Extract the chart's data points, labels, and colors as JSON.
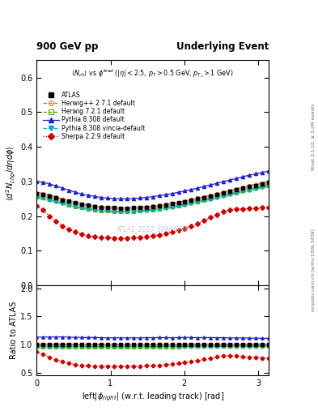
{
  "title_left": "900 GeV pp",
  "title_right": "Underlying Event",
  "subtitle": "<N_{ch}> vs \\phi^{lead} (|\\eta| < 2.5, p_T > 0.5 GeV, p_{T_1} > 1 GeV)",
  "ylabel_main": "\\langle d^2 N_{chg}/d\\eta d\\phi \\rangle",
  "ylabel_ratio": "Ratio to ATLAS",
  "xlabel": "left|\\phi_{right}| (w.r.t. leading track) [rad]",
  "watermark": "ATLAS_2010_S8894728",
  "right_label_top": "Rivet 3.1.10, \\geq 3.2M events",
  "right_label_bot": "mcplots.cern.ch [arXiv:1306.3436]",
  "ylim_main": [
    0.0,
    0.65
  ],
  "ylim_ratio": [
    0.45,
    2.05
  ],
  "yticks_main": [
    0.0,
    0.1,
    0.2,
    0.3,
    0.4,
    0.5,
    0.6
  ],
  "yticks_ratio": [
    0.5,
    1.0,
    1.5,
    2.0
  ],
  "xlim": [
    0.0,
    3.14159
  ],
  "xticks": [
    0,
    1,
    2,
    3
  ],
  "phi": [
    0.0,
    0.08727,
    0.17453,
    0.2618,
    0.34907,
    0.43633,
    0.5236,
    0.61087,
    0.69813,
    0.7854,
    0.87266,
    0.95993,
    1.0472,
    1.13446,
    1.22173,
    1.309,
    1.39626,
    1.48353,
    1.5708,
    1.65806,
    1.74533,
    1.8326,
    1.91986,
    2.00713,
    2.0944,
    2.18166,
    2.26893,
    2.35619,
    2.44346,
    2.53073,
    2.61799,
    2.70526,
    2.79253,
    2.87979,
    2.96706,
    3.05433,
    3.14159
  ],
  "atlas_y": [
    0.265,
    0.263,
    0.258,
    0.253,
    0.247,
    0.243,
    0.238,
    0.234,
    0.231,
    0.228,
    0.226,
    0.225,
    0.224,
    0.223,
    0.223,
    0.224,
    0.225,
    0.226,
    0.228,
    0.23,
    0.233,
    0.236,
    0.239,
    0.242,
    0.246,
    0.25,
    0.254,
    0.258,
    0.263,
    0.267,
    0.272,
    0.276,
    0.281,
    0.285,
    0.289,
    0.293,
    0.297
  ],
  "atlas_yerr": [
    0.005,
    0.005,
    0.005,
    0.004,
    0.004,
    0.004,
    0.004,
    0.004,
    0.003,
    0.003,
    0.003,
    0.003,
    0.003,
    0.003,
    0.003,
    0.003,
    0.003,
    0.003,
    0.003,
    0.003,
    0.003,
    0.003,
    0.003,
    0.004,
    0.004,
    0.004,
    0.004,
    0.004,
    0.004,
    0.004,
    0.005,
    0.005,
    0.005,
    0.005,
    0.005,
    0.005,
    0.005
  ],
  "herwig_pp_y": [
    0.268,
    0.265,
    0.26,
    0.255,
    0.249,
    0.244,
    0.239,
    0.235,
    0.232,
    0.229,
    0.227,
    0.225,
    0.224,
    0.223,
    0.223,
    0.224,
    0.225,
    0.227,
    0.229,
    0.231,
    0.234,
    0.237,
    0.24,
    0.244,
    0.248,
    0.252,
    0.256,
    0.26,
    0.265,
    0.269,
    0.274,
    0.278,
    0.283,
    0.287,
    0.291,
    0.295,
    0.299
  ],
  "herwig7_y": [
    0.255,
    0.252,
    0.248,
    0.243,
    0.238,
    0.233,
    0.228,
    0.224,
    0.221,
    0.218,
    0.216,
    0.215,
    0.214,
    0.213,
    0.213,
    0.214,
    0.215,
    0.217,
    0.219,
    0.221,
    0.224,
    0.227,
    0.23,
    0.234,
    0.238,
    0.242,
    0.246,
    0.25,
    0.255,
    0.259,
    0.264,
    0.268,
    0.273,
    0.277,
    0.281,
    0.285,
    0.289
  ],
  "pythia8_y": [
    0.3,
    0.298,
    0.293,
    0.287,
    0.281,
    0.275,
    0.269,
    0.264,
    0.26,
    0.257,
    0.254,
    0.252,
    0.251,
    0.25,
    0.25,
    0.251,
    0.252,
    0.254,
    0.256,
    0.259,
    0.262,
    0.265,
    0.269,
    0.273,
    0.277,
    0.281,
    0.286,
    0.29,
    0.295,
    0.3,
    0.304,
    0.309,
    0.314,
    0.318,
    0.322,
    0.326,
    0.33
  ],
  "vincia_y": [
    0.255,
    0.252,
    0.247,
    0.242,
    0.237,
    0.232,
    0.228,
    0.224,
    0.221,
    0.218,
    0.216,
    0.215,
    0.214,
    0.213,
    0.213,
    0.214,
    0.215,
    0.216,
    0.218,
    0.22,
    0.223,
    0.226,
    0.229,
    0.233,
    0.237,
    0.241,
    0.245,
    0.249,
    0.253,
    0.258,
    0.262,
    0.266,
    0.271,
    0.275,
    0.279,
    0.283,
    0.287
  ],
  "sherpa_y": [
    0.23,
    0.218,
    0.2,
    0.185,
    0.172,
    0.162,
    0.154,
    0.148,
    0.144,
    0.141,
    0.139,
    0.138,
    0.137,
    0.137,
    0.137,
    0.138,
    0.139,
    0.141,
    0.143,
    0.146,
    0.15,
    0.154,
    0.159,
    0.165,
    0.172,
    0.179,
    0.187,
    0.196,
    0.205,
    0.214,
    0.218,
    0.22,
    0.221,
    0.222,
    0.223,
    0.224,
    0.225
  ],
  "atlas_color": "black",
  "herwig_pp_color": "#CC7722",
  "herwig7_color": "#55AA00",
  "pythia8_color": "#2222CC",
  "vincia_color": "#00AACC",
  "sherpa_color": "#CC0000",
  "atlas_band_color": "#AAAAAA",
  "herwig7_band_color": "#99CC44"
}
